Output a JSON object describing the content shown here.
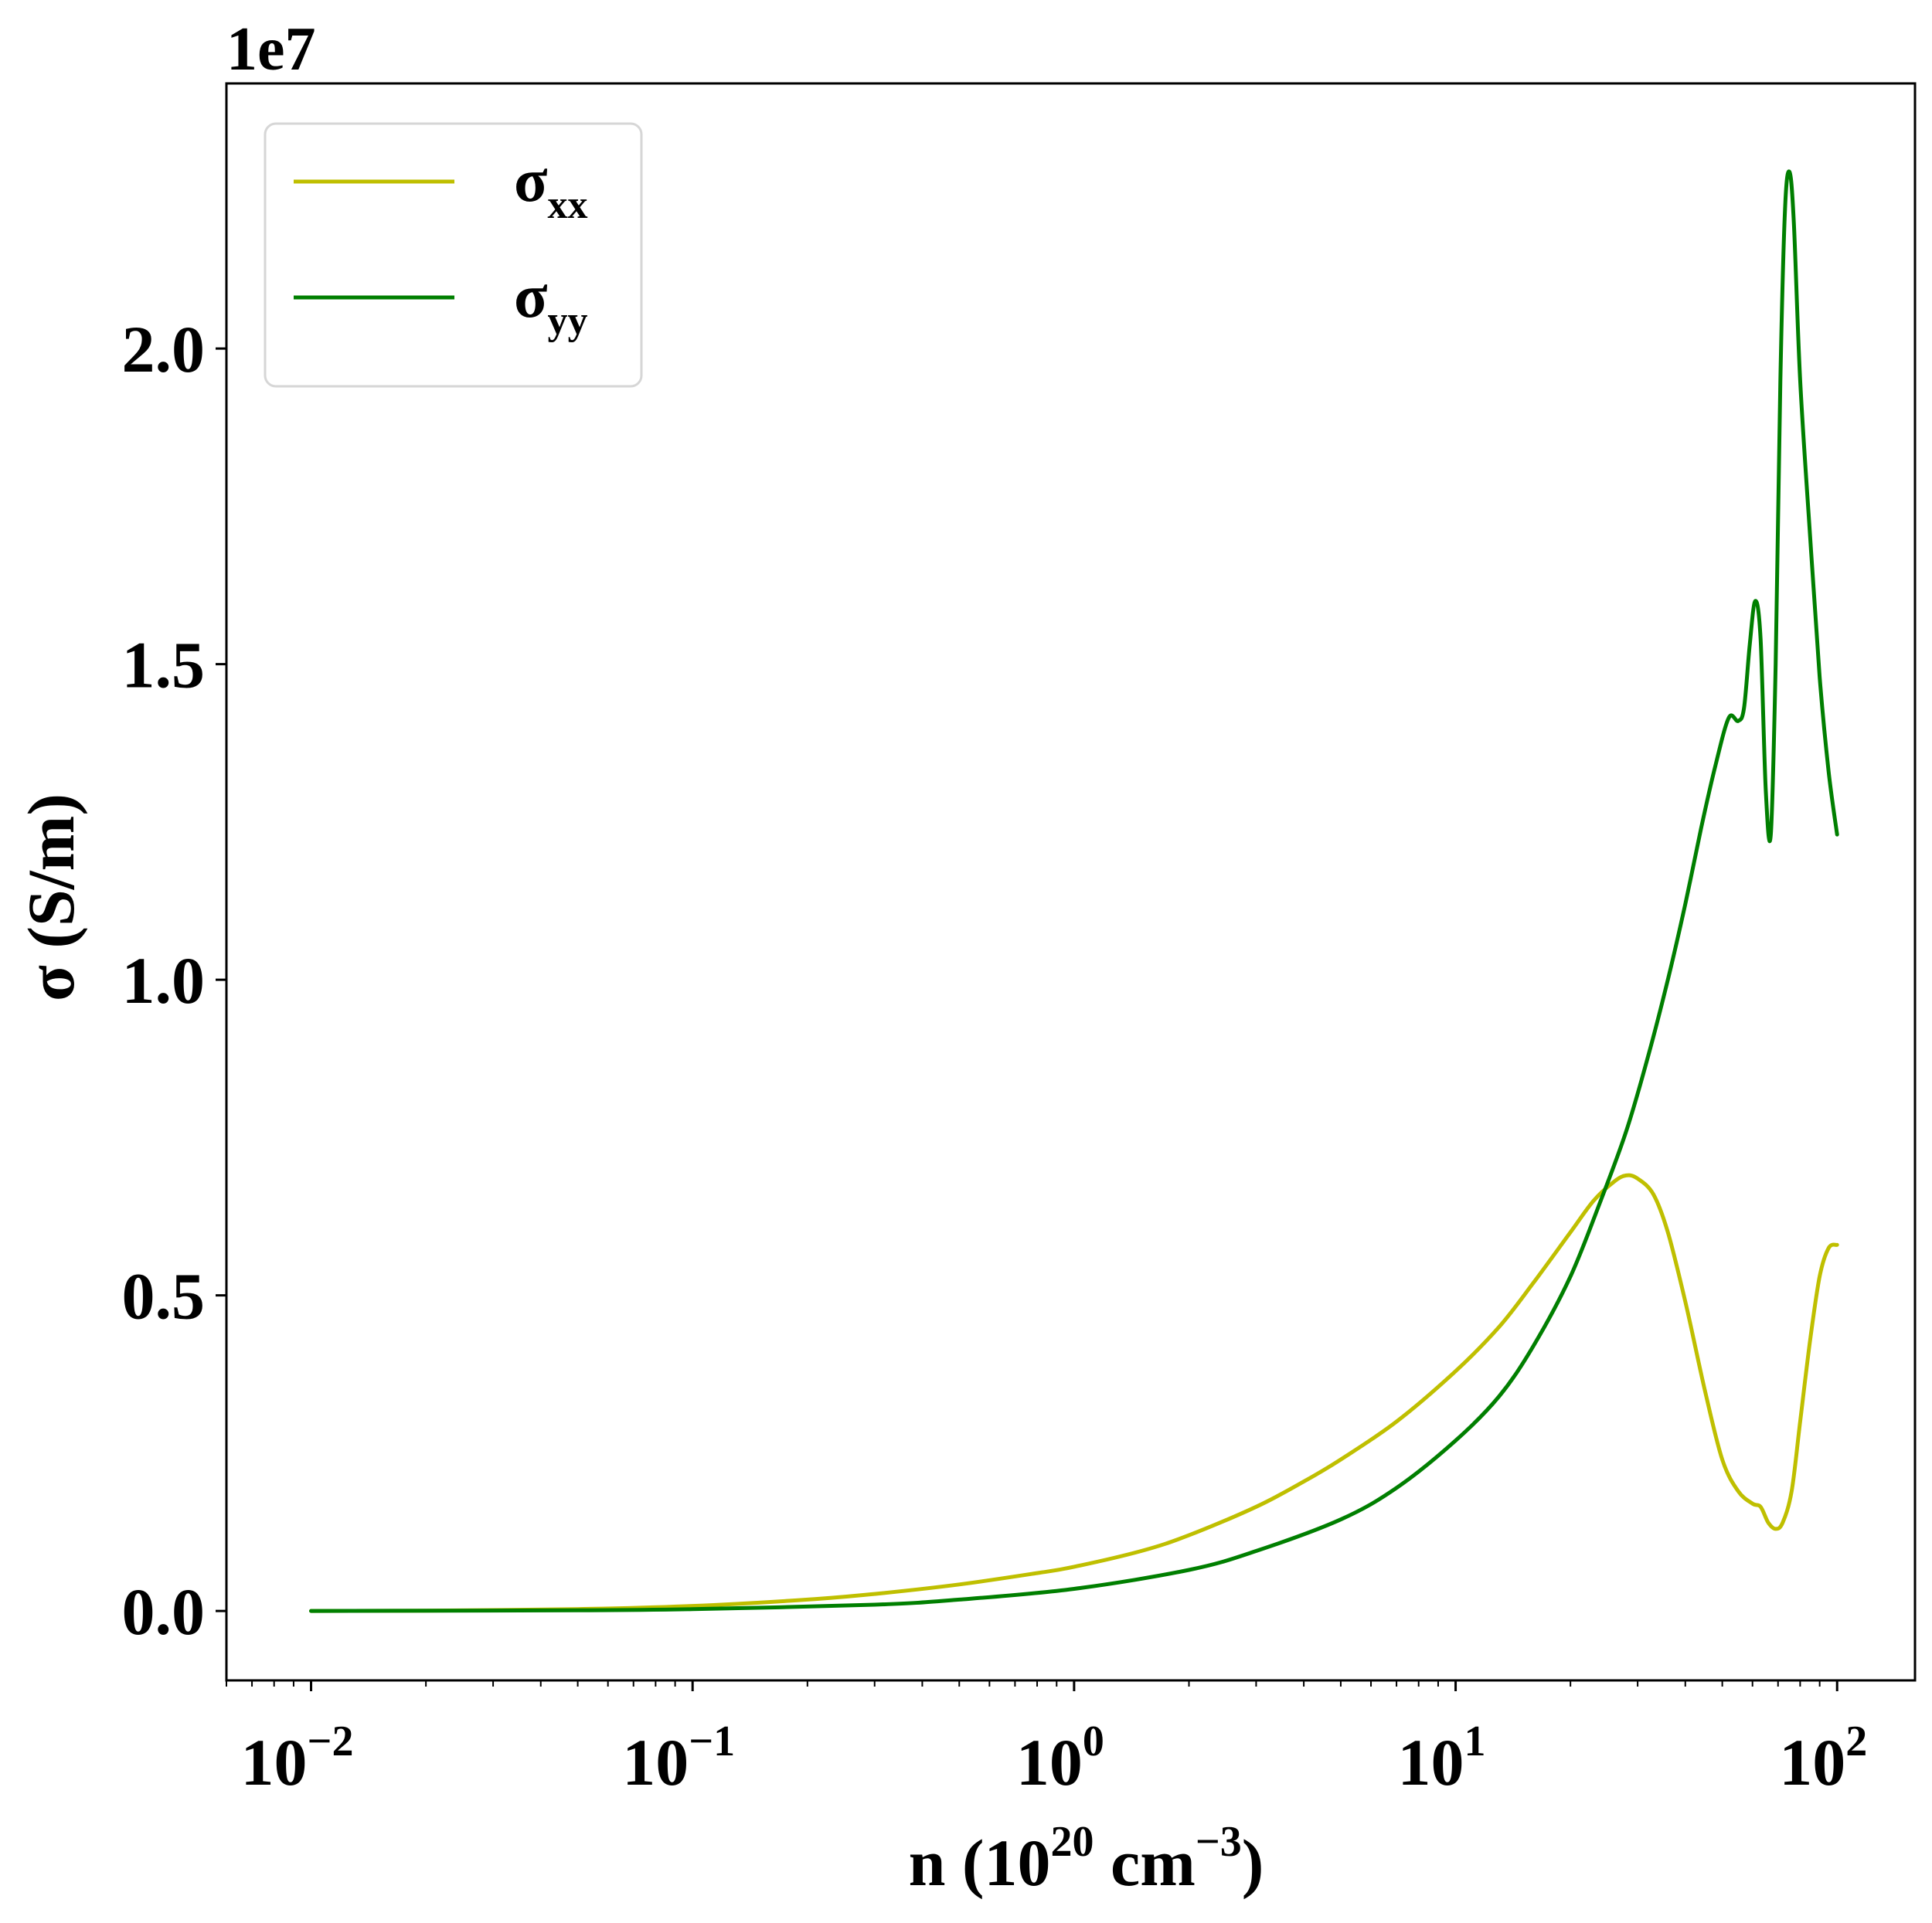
{
  "chart_data": {
    "type": "line",
    "title": "",
    "xlabel": {
      "base": "n (10",
      "exp1": "20",
      "mid": " cm",
      "exp2": "−3",
      "end": ")"
    },
    "ylabel": "σ (S/m)",
    "xscale": "log",
    "xlim": [
      0.006,
      160
    ],
    "ylim": [
      -0.11,
      2.42
    ],
    "y_offset_label": "1e7",
    "grid": false,
    "legend_position": "top-left",
    "xticks": [
      {
        "value": 0.01,
        "base": "10",
        "exp": "−2"
      },
      {
        "value": 0.1,
        "base": "10",
        "exp": "−1"
      },
      {
        "value": 1,
        "base": "10",
        "exp": "0"
      },
      {
        "value": 10,
        "base": "10",
        "exp": "1"
      },
      {
        "value": 100,
        "base": "10",
        "exp": "2"
      }
    ],
    "yticks": [
      {
        "value": 0.0,
        "label": "0.0"
      },
      {
        "value": 0.5,
        "label": "0.5"
      },
      {
        "value": 1.0,
        "label": "1.0"
      },
      {
        "value": 1.5,
        "label": "1.5"
      },
      {
        "value": 2.0,
        "label": "2.0"
      }
    ],
    "series": [
      {
        "name": "σ",
        "name_sub": "xx",
        "color": "#bfbf00",
        "points": [
          [
            0.01,
            0.0
          ],
          [
            0.02,
            0.0005
          ],
          [
            0.05,
            0.003
          ],
          [
            0.1,
            0.008
          ],
          [
            0.2,
            0.018
          ],
          [
            0.3,
            0.027
          ],
          [
            0.5,
            0.042
          ],
          [
            0.8,
            0.06
          ],
          [
            1.0,
            0.07
          ],
          [
            1.5,
            0.095
          ],
          [
            2.0,
            0.12
          ],
          [
            3.0,
            0.165
          ],
          [
            4.0,
            0.205
          ],
          [
            5.0,
            0.24
          ],
          [
            7.0,
            0.3
          ],
          [
            10.0,
            0.38
          ],
          [
            13.0,
            0.45
          ],
          [
            16.0,
            0.52
          ],
          [
            20.0,
            0.6
          ],
          [
            23.0,
            0.65
          ],
          [
            26.0,
            0.68
          ],
          [
            28.0,
            0.69
          ],
          [
            30.0,
            0.685
          ],
          [
            33.0,
            0.66
          ],
          [
            36.0,
            0.6
          ],
          [
            40.0,
            0.49
          ],
          [
            45.0,
            0.35
          ],
          [
            50.0,
            0.24
          ],
          [
            55.0,
            0.19
          ],
          [
            60.0,
            0.17
          ],
          [
            63.0,
            0.165
          ],
          [
            66.0,
            0.14
          ],
          [
            69.0,
            0.13
          ],
          [
            72.0,
            0.14
          ],
          [
            76.0,
            0.19
          ],
          [
            80.0,
            0.3
          ],
          [
            85.0,
            0.43
          ],
          [
            90.0,
            0.53
          ],
          [
            95.0,
            0.575
          ],
          [
            100.0,
            0.58
          ]
        ]
      },
      {
        "name": "σ",
        "name_sub": "yy",
        "color": "#007f00",
        "points": [
          [
            0.01,
            0.0
          ],
          [
            0.05,
            0.001
          ],
          [
            0.1,
            0.003
          ],
          [
            0.3,
            0.01
          ],
          [
            0.5,
            0.018
          ],
          [
            1.0,
            0.035
          ],
          [
            2.0,
            0.065
          ],
          [
            3.0,
            0.095
          ],
          [
            5.0,
            0.145
          ],
          [
            7.0,
            0.195
          ],
          [
            10.0,
            0.27
          ],
          [
            13.0,
            0.34
          ],
          [
            16.0,
            0.42
          ],
          [
            20.0,
            0.53
          ],
          [
            24.0,
            0.65
          ],
          [
            28.0,
            0.76
          ],
          [
            32.0,
            0.88
          ],
          [
            36.0,
            1.0
          ],
          [
            40.0,
            1.12
          ],
          [
            44.0,
            1.24
          ],
          [
            48.0,
            1.34
          ],
          [
            52.0,
            1.415
          ],
          [
            55.0,
            1.41
          ],
          [
            57.0,
            1.43
          ],
          [
            59.0,
            1.53
          ],
          [
            61.0,
            1.6
          ],
          [
            63.0,
            1.54
          ],
          [
            65.0,
            1.3
          ],
          [
            67.0,
            1.23
          ],
          [
            69.0,
            1.5
          ],
          [
            71.0,
            1.95
          ],
          [
            73.0,
            2.22
          ],
          [
            75.0,
            2.28
          ],
          [
            77.0,
            2.2
          ],
          [
            80.0,
            1.95
          ],
          [
            85.0,
            1.7
          ],
          [
            90.0,
            1.48
          ],
          [
            95.0,
            1.33
          ],
          [
            100.0,
            1.23
          ]
        ]
      }
    ]
  }
}
